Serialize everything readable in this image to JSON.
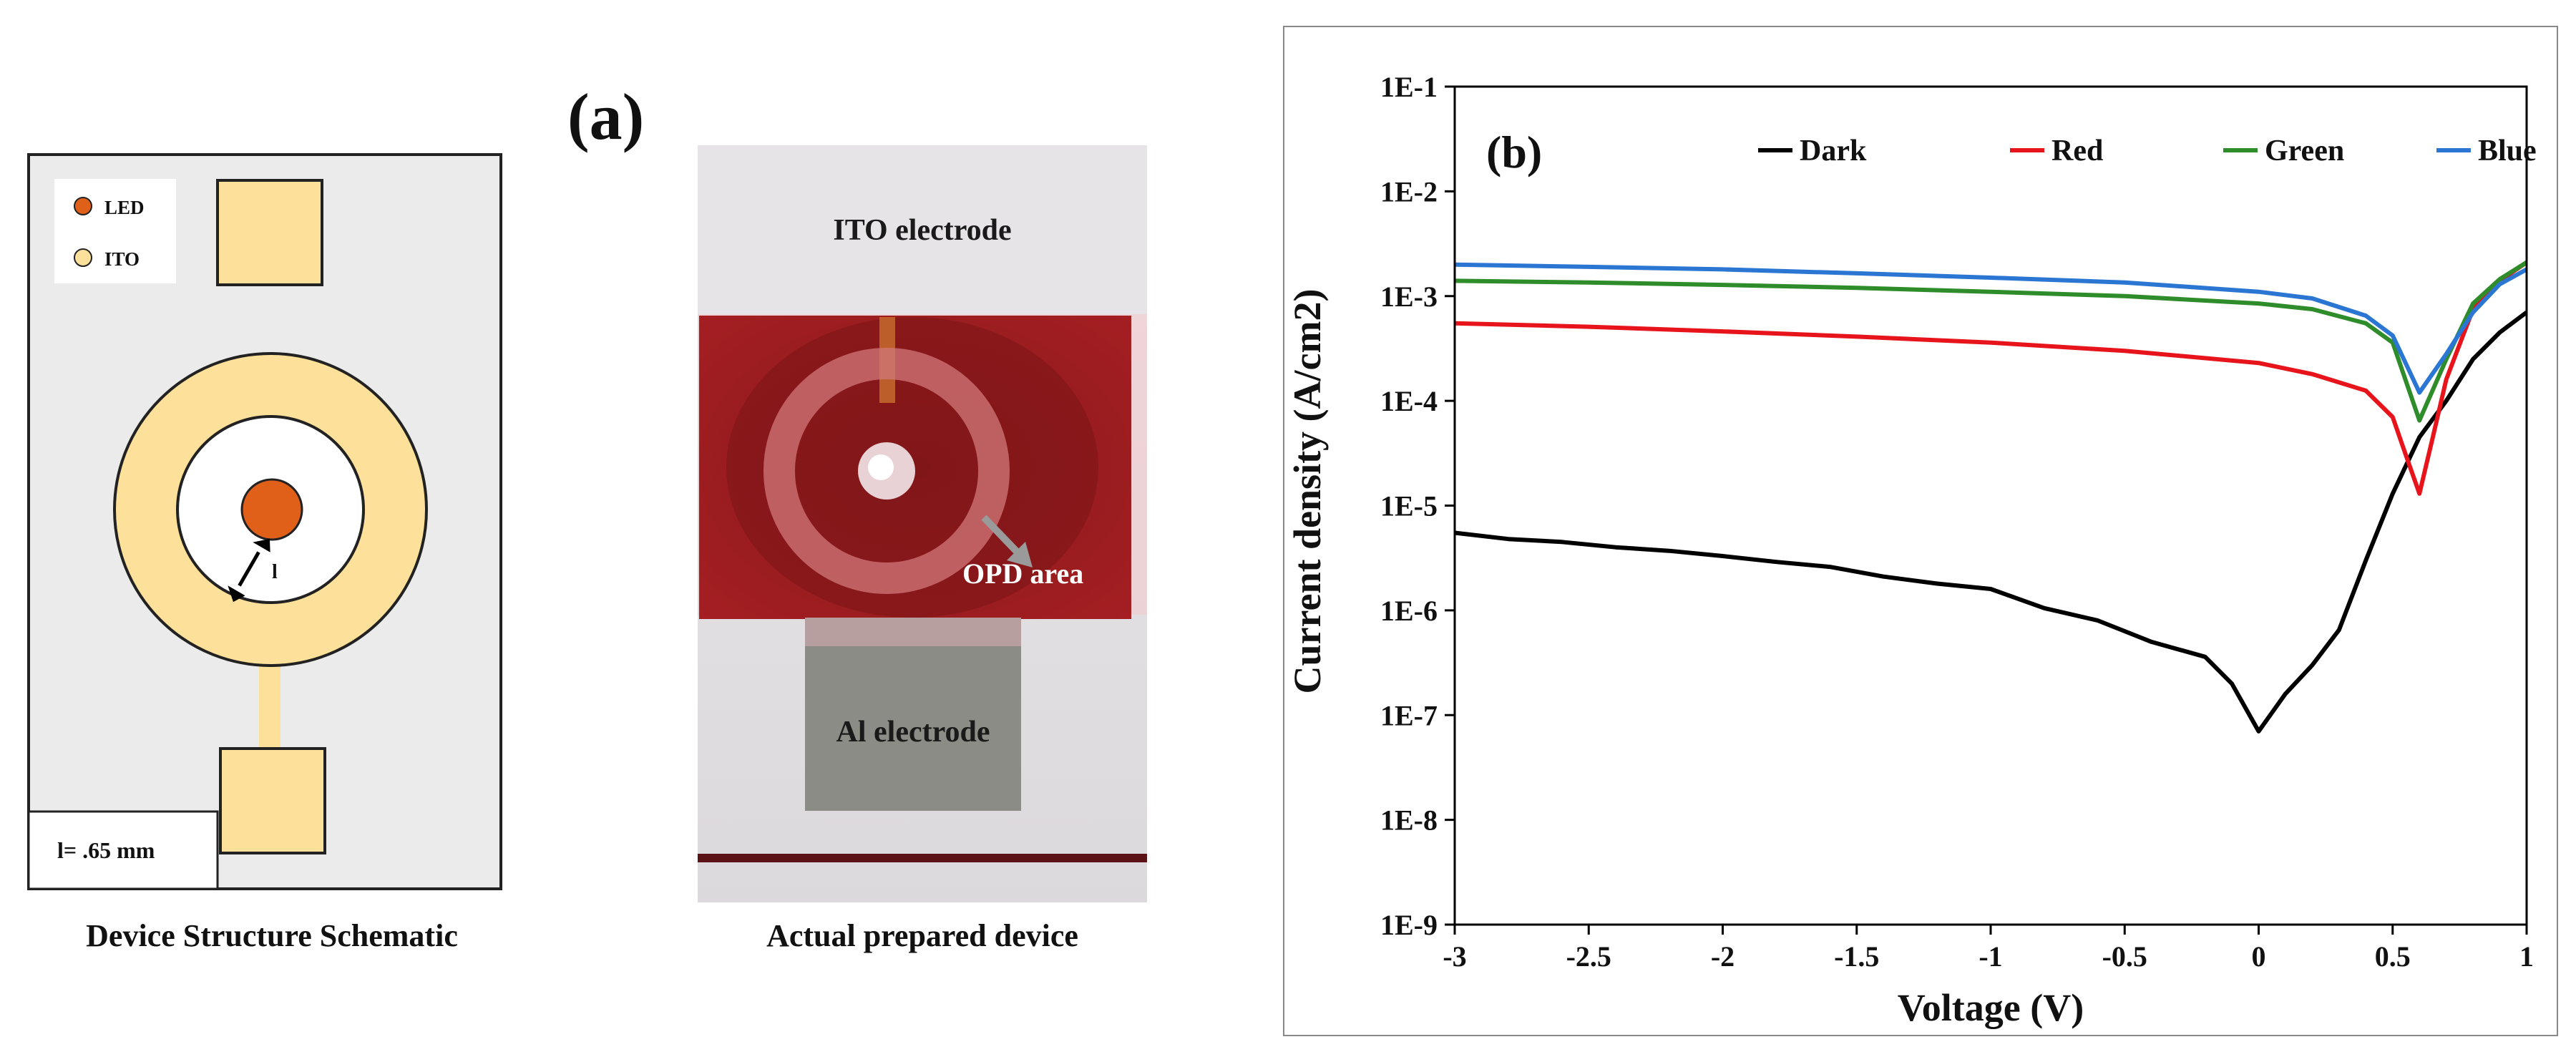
{
  "figure": {
    "panel_a_label": "(a)",
    "schematic": {
      "legend": [
        {
          "label": "LED",
          "color": "#e0601a"
        },
        {
          "label": "ITO",
          "color": "#fde19a"
        }
      ],
      "gap_label": "l",
      "dimension_note": "l= .65 mm",
      "caption": "Device Structure Schematic"
    },
    "photo": {
      "label_top": "ITO electrode",
      "label_opd": "OPD area",
      "label_bottom": "Al electrode",
      "caption": "Actual prepared device"
    }
  },
  "chart_data": {
    "type": "line",
    "panel_label": "(b)",
    "xlabel": "Voltage (V)",
    "ylabel": "Current density  (A/cm2)",
    "yscale": "log",
    "xlim": [
      -3,
      1
    ],
    "ylim": [
      1e-09,
      0.1
    ],
    "x_ticks": [
      -3,
      -2.5,
      -2,
      -1.5,
      -1,
      -0.5,
      0,
      0.5,
      1
    ],
    "x_tick_labels": [
      "-3",
      "-2.5",
      "-2",
      "-1.5",
      "-1",
      "-0.5",
      "0",
      "0.5",
      "1"
    ],
    "y_ticks": [
      1e-09,
      1e-08,
      1e-07,
      1e-06,
      1e-05,
      0.0001,
      0.001,
      0.01,
      0.1
    ],
    "y_tick_labels": [
      "1E-9",
      "1E-8",
      "1E-7",
      "1E-6",
      "1E-5",
      "1E-4",
      "1E-3",
      "1E-2",
      "1E-1"
    ],
    "legend_position": "top",
    "series": [
      {
        "name": "Dark",
        "color": "#000000",
        "x": [
          -3,
          -2.8,
          -2.6,
          -2.4,
          -2.2,
          -2.0,
          -1.8,
          -1.6,
          -1.4,
          -1.2,
          -1.0,
          -0.8,
          -0.6,
          -0.4,
          -0.2,
          -0.1,
          0,
          0.1,
          0.2,
          0.3,
          0.4,
          0.5,
          0.6,
          0.7,
          0.8,
          0.9,
          1.0
        ],
        "y": [
          5.5e-06,
          4.8e-06,
          4.5e-06,
          4e-06,
          3.7e-06,
          3.3e-06,
          2.9e-06,
          2.6e-06,
          2.1e-06,
          1.8e-06,
          1.6e-06,
          1.05e-06,
          8e-07,
          5e-07,
          3.6e-07,
          2e-07,
          7e-08,
          1.6e-07,
          3e-07,
          6.5e-07,
          3e-06,
          1.3e-05,
          4.5e-05,
          0.0001,
          0.00025,
          0.00045,
          0.0007
        ]
      },
      {
        "name": "Red",
        "color": "#e8141c",
        "x": [
          -3,
          -2.5,
          -2.0,
          -1.5,
          -1.0,
          -0.5,
          0,
          0.2,
          0.4,
          0.5,
          0.55,
          0.6,
          0.65,
          0.7,
          0.8,
          0.9,
          1.0
        ],
        "y": [
          0.00055,
          0.00051,
          0.00046,
          0.00041,
          0.00036,
          0.0003,
          0.00023,
          0.00018,
          0.000125,
          7e-05,
          3e-05,
          1.3e-05,
          4.5e-05,
          0.00016,
          0.00075,
          0.0014,
          0.0021
        ]
      },
      {
        "name": "Green",
        "color": "#2f8c2a",
        "x": [
          -3,
          -2.5,
          -2.0,
          -1.5,
          -1.0,
          -0.5,
          0,
          0.2,
          0.4,
          0.5,
          0.6,
          0.7,
          0.8,
          0.9,
          1.0
        ],
        "y": [
          0.0014,
          0.00135,
          0.00128,
          0.0012,
          0.0011,
          0.001,
          0.00085,
          0.00075,
          0.00055,
          0.00036,
          6.5e-05,
          0.00025,
          0.00085,
          0.00145,
          0.0021
        ]
      },
      {
        "name": "Blue",
        "color": "#2a76d2",
        "x": [
          -3,
          -2.5,
          -2.0,
          -1.5,
          -1.0,
          -0.5,
          0,
          0.2,
          0.4,
          0.5,
          0.6,
          0.7,
          0.8,
          0.9,
          1.0
        ],
        "y": [
          0.002,
          0.0019,
          0.0018,
          0.00165,
          0.0015,
          0.00135,
          0.0011,
          0.00095,
          0.00065,
          0.00042,
          0.00012,
          0.00028,
          0.0007,
          0.0013,
          0.0018
        ]
      }
    ]
  }
}
